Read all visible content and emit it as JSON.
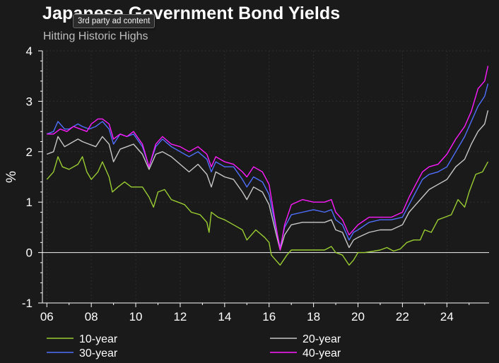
{
  "ad_badge": "3rd party ad content",
  "chart_data": {
    "type": "line",
    "title": "Japanese Government Bond Yields",
    "subtitle": "Hitting Historic Highs",
    "ylabel": "%",
    "xlabel": "",
    "x_tick_labels": [
      "06",
      "08",
      "10",
      "12",
      "14",
      "16",
      "18",
      "20",
      "22",
      "24"
    ],
    "x_tick_years": [
      2006,
      2008,
      2010,
      2012,
      2014,
      2016,
      2018,
      2020,
      2022,
      2024
    ],
    "xlim": [
      2005.8,
      2025.9
    ],
    "ylim": [
      -1,
      4
    ],
    "y_ticks": [
      -1,
      0,
      1,
      2,
      3,
      4
    ],
    "grid": true,
    "legend_position": "bottom",
    "series": [
      {
        "name": "10-year",
        "color": "#9acd32",
        "points": [
          [
            2006.0,
            1.45
          ],
          [
            2006.3,
            1.6
          ],
          [
            2006.5,
            1.9
          ],
          [
            2006.7,
            1.7
          ],
          [
            2007.0,
            1.65
          ],
          [
            2007.4,
            1.75
          ],
          [
            2007.6,
            1.9
          ],
          [
            2007.8,
            1.6
          ],
          [
            2008.0,
            1.45
          ],
          [
            2008.3,
            1.6
          ],
          [
            2008.5,
            1.8
          ],
          [
            2008.8,
            1.5
          ],
          [
            2008.95,
            1.2
          ],
          [
            2009.2,
            1.3
          ],
          [
            2009.5,
            1.4
          ],
          [
            2009.8,
            1.3
          ],
          [
            2010.0,
            1.3
          ],
          [
            2010.3,
            1.3
          ],
          [
            2010.6,
            1.1
          ],
          [
            2010.8,
            0.9
          ],
          [
            2011.0,
            1.2
          ],
          [
            2011.3,
            1.25
          ],
          [
            2011.6,
            1.05
          ],
          [
            2011.9,
            1.0
          ],
          [
            2012.2,
            0.95
          ],
          [
            2012.5,
            0.8
          ],
          [
            2012.9,
            0.75
          ],
          [
            2013.2,
            0.6
          ],
          [
            2013.3,
            0.4
          ],
          [
            2013.4,
            0.8
          ],
          [
            2013.7,
            0.7
          ],
          [
            2014.0,
            0.65
          ],
          [
            2014.4,
            0.55
          ],
          [
            2014.8,
            0.45
          ],
          [
            2015.0,
            0.25
          ],
          [
            2015.4,
            0.45
          ],
          [
            2015.8,
            0.3
          ],
          [
            2016.0,
            0.2
          ],
          [
            2016.1,
            -0.05
          ],
          [
            2016.3,
            -0.15
          ],
          [
            2016.5,
            -0.25
          ],
          [
            2016.8,
            -0.05
          ],
          [
            2017.0,
            0.05
          ],
          [
            2017.5,
            0.05
          ],
          [
            2018.0,
            0.05
          ],
          [
            2018.5,
            0.05
          ],
          [
            2018.8,
            0.12
          ],
          [
            2019.0,
            0.0
          ],
          [
            2019.3,
            -0.05
          ],
          [
            2019.6,
            -0.25
          ],
          [
            2019.8,
            -0.15
          ],
          [
            2020.0,
            0.0
          ],
          [
            2020.3,
            0.0
          ],
          [
            2020.6,
            0.02
          ],
          [
            2021.0,
            0.05
          ],
          [
            2021.3,
            0.1
          ],
          [
            2021.6,
            0.03
          ],
          [
            2021.9,
            0.07
          ],
          [
            2022.2,
            0.2
          ],
          [
            2022.5,
            0.25
          ],
          [
            2022.8,
            0.25
          ],
          [
            2023.0,
            0.45
          ],
          [
            2023.3,
            0.4
          ],
          [
            2023.6,
            0.65
          ],
          [
            2023.9,
            0.7
          ],
          [
            2024.2,
            0.75
          ],
          [
            2024.5,
            1.05
          ],
          [
            2024.8,
            0.9
          ],
          [
            2025.0,
            1.2
          ],
          [
            2025.3,
            1.55
          ],
          [
            2025.6,
            1.6
          ],
          [
            2025.85,
            1.8
          ]
        ]
      },
      {
        "name": "20-year",
        "color": "#c8c8c8",
        "points": [
          [
            2006.0,
            1.95
          ],
          [
            2006.3,
            2.0
          ],
          [
            2006.5,
            2.3
          ],
          [
            2006.8,
            2.1
          ],
          [
            2007.0,
            2.15
          ],
          [
            2007.4,
            2.25
          ],
          [
            2007.6,
            2.2
          ],
          [
            2007.9,
            2.15
          ],
          [
            2008.2,
            2.1
          ],
          [
            2008.5,
            2.3
          ],
          [
            2008.8,
            2.15
          ],
          [
            2009.0,
            1.8
          ],
          [
            2009.3,
            2.05
          ],
          [
            2009.6,
            2.1
          ],
          [
            2009.9,
            2.15
          ],
          [
            2010.3,
            1.95
          ],
          [
            2010.6,
            1.65
          ],
          [
            2010.9,
            1.95
          ],
          [
            2011.2,
            2.0
          ],
          [
            2011.6,
            1.9
          ],
          [
            2012.0,
            1.75
          ],
          [
            2012.4,
            1.6
          ],
          [
            2012.8,
            1.75
          ],
          [
            2013.2,
            1.55
          ],
          [
            2013.4,
            1.3
          ],
          [
            2013.6,
            1.6
          ],
          [
            2014.0,
            1.5
          ],
          [
            2014.4,
            1.45
          ],
          [
            2014.8,
            1.2
          ],
          [
            2015.0,
            1.05
          ],
          [
            2015.3,
            1.3
          ],
          [
            2015.7,
            1.2
          ],
          [
            2016.0,
            0.95
          ],
          [
            2016.3,
            0.4
          ],
          [
            2016.5,
            0.05
          ],
          [
            2016.7,
            0.35
          ],
          [
            2017.0,
            0.55
          ],
          [
            2017.5,
            0.6
          ],
          [
            2018.0,
            0.6
          ],
          [
            2018.5,
            0.6
          ],
          [
            2018.8,
            0.65
          ],
          [
            2019.0,
            0.45
          ],
          [
            2019.3,
            0.4
          ],
          [
            2019.6,
            0.1
          ],
          [
            2019.8,
            0.25
          ],
          [
            2020.0,
            0.3
          ],
          [
            2020.5,
            0.4
          ],
          [
            2021.0,
            0.45
          ],
          [
            2021.5,
            0.45
          ],
          [
            2022.0,
            0.55
          ],
          [
            2022.3,
            0.8
          ],
          [
            2022.6,
            0.95
          ],
          [
            2022.9,
            1.1
          ],
          [
            2023.2,
            1.25
          ],
          [
            2023.6,
            1.35
          ],
          [
            2024.0,
            1.45
          ],
          [
            2024.4,
            1.7
          ],
          [
            2024.8,
            1.85
          ],
          [
            2025.1,
            2.15
          ],
          [
            2025.4,
            2.4
          ],
          [
            2025.7,
            2.55
          ],
          [
            2025.85,
            2.82
          ]
        ]
      },
      {
        "name": "30-year",
        "color": "#4f6fff",
        "points": [
          [
            2006.0,
            2.35
          ],
          [
            2006.3,
            2.4
          ],
          [
            2006.5,
            2.6
          ],
          [
            2006.8,
            2.45
          ],
          [
            2007.0,
            2.45
          ],
          [
            2007.4,
            2.55
          ],
          [
            2007.6,
            2.5
          ],
          [
            2007.9,
            2.45
          ],
          [
            2008.2,
            2.5
          ],
          [
            2008.5,
            2.6
          ],
          [
            2008.8,
            2.45
          ],
          [
            2009.0,
            2.15
          ],
          [
            2009.3,
            2.35
          ],
          [
            2009.6,
            2.3
          ],
          [
            2009.9,
            2.35
          ],
          [
            2010.3,
            2.1
          ],
          [
            2010.6,
            1.7
          ],
          [
            2010.9,
            2.1
          ],
          [
            2011.2,
            2.25
          ],
          [
            2011.6,
            2.1
          ],
          [
            2012.0,
            2.0
          ],
          [
            2012.4,
            1.9
          ],
          [
            2012.8,
            2.0
          ],
          [
            2013.2,
            1.85
          ],
          [
            2013.4,
            1.6
          ],
          [
            2013.6,
            1.8
          ],
          [
            2014.0,
            1.7
          ],
          [
            2014.4,
            1.7
          ],
          [
            2014.8,
            1.45
          ],
          [
            2015.0,
            1.3
          ],
          [
            2015.3,
            1.5
          ],
          [
            2015.7,
            1.4
          ],
          [
            2016.0,
            1.15
          ],
          [
            2016.3,
            0.5
          ],
          [
            2016.5,
            0.1
          ],
          [
            2016.7,
            0.5
          ],
          [
            2017.0,
            0.75
          ],
          [
            2017.5,
            0.8
          ],
          [
            2018.0,
            0.85
          ],
          [
            2018.5,
            0.8
          ],
          [
            2018.8,
            0.85
          ],
          [
            2019.0,
            0.65
          ],
          [
            2019.3,
            0.55
          ],
          [
            2019.6,
            0.25
          ],
          [
            2019.8,
            0.4
          ],
          [
            2020.0,
            0.45
          ],
          [
            2020.5,
            0.6
          ],
          [
            2021.0,
            0.65
          ],
          [
            2021.5,
            0.65
          ],
          [
            2022.0,
            0.7
          ],
          [
            2022.3,
            0.95
          ],
          [
            2022.6,
            1.2
          ],
          [
            2022.9,
            1.45
          ],
          [
            2023.2,
            1.55
          ],
          [
            2023.6,
            1.6
          ],
          [
            2024.0,
            1.7
          ],
          [
            2024.4,
            2.0
          ],
          [
            2024.8,
            2.3
          ],
          [
            2025.1,
            2.6
          ],
          [
            2025.4,
            2.9
          ],
          [
            2025.7,
            3.1
          ],
          [
            2025.85,
            3.35
          ]
        ]
      },
      {
        "name": "40-year",
        "color": "#ff1aff",
        "points": [
          [
            2006.0,
            2.35
          ],
          [
            2006.3,
            2.35
          ],
          [
            2006.6,
            2.45
          ],
          [
            2006.9,
            2.4
          ],
          [
            2007.2,
            2.5
          ],
          [
            2007.5,
            2.45
          ],
          [
            2007.8,
            2.4
          ],
          [
            2008.0,
            2.55
          ],
          [
            2008.3,
            2.65
          ],
          [
            2008.5,
            2.65
          ],
          [
            2008.8,
            2.55
          ],
          [
            2009.0,
            2.25
          ],
          [
            2009.3,
            2.35
          ],
          [
            2009.6,
            2.3
          ],
          [
            2009.9,
            2.4
          ],
          [
            2010.3,
            2.15
          ],
          [
            2010.6,
            1.7
          ],
          [
            2010.9,
            2.15
          ],
          [
            2011.2,
            2.3
          ],
          [
            2011.6,
            2.15
          ],
          [
            2012.0,
            2.1
          ],
          [
            2012.4,
            2.0
          ],
          [
            2012.8,
            2.1
          ],
          [
            2013.2,
            1.95
          ],
          [
            2013.4,
            1.7
          ],
          [
            2013.6,
            1.9
          ],
          [
            2014.0,
            1.8
          ],
          [
            2014.4,
            1.75
          ],
          [
            2014.8,
            1.6
          ],
          [
            2015.0,
            1.5
          ],
          [
            2015.3,
            1.7
          ],
          [
            2015.7,
            1.6
          ],
          [
            2016.0,
            1.35
          ],
          [
            2016.3,
            0.55
          ],
          [
            2016.5,
            0.05
          ],
          [
            2016.7,
            0.55
          ],
          [
            2017.0,
            0.95
          ],
          [
            2017.5,
            1.05
          ],
          [
            2018.0,
            1.0
          ],
          [
            2018.5,
            1.0
          ],
          [
            2018.8,
            1.05
          ],
          [
            2019.0,
            0.8
          ],
          [
            2019.3,
            0.65
          ],
          [
            2019.6,
            0.35
          ],
          [
            2019.8,
            0.45
          ],
          [
            2020.0,
            0.55
          ],
          [
            2020.5,
            0.7
          ],
          [
            2021.0,
            0.7
          ],
          [
            2021.5,
            0.7
          ],
          [
            2022.0,
            0.8
          ],
          [
            2022.3,
            1.1
          ],
          [
            2022.6,
            1.35
          ],
          [
            2022.9,
            1.6
          ],
          [
            2023.2,
            1.7
          ],
          [
            2023.6,
            1.75
          ],
          [
            2024.0,
            1.95
          ],
          [
            2024.4,
            2.25
          ],
          [
            2024.8,
            2.5
          ],
          [
            2025.1,
            2.8
          ],
          [
            2025.4,
            3.25
          ],
          [
            2025.7,
            3.4
          ],
          [
            2025.85,
            3.7
          ]
        ]
      }
    ]
  }
}
